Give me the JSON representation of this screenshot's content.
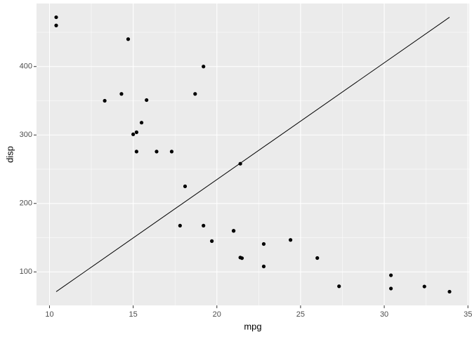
{
  "chart_data": {
    "type": "scatter",
    "x_label": "mpg",
    "y_label": "disp",
    "x": [
      21,
      21,
      22.8,
      21.4,
      18.7,
      18.1,
      14.3,
      24.4,
      22.8,
      19.2,
      17.8,
      16.4,
      17.3,
      15.2,
      10.4,
      10.4,
      14.7,
      32.4,
      30.4,
      33.9,
      21.5,
      15.5,
      15.2,
      13.3,
      19.2,
      27.3,
      26,
      30.4,
      15.8,
      19.7,
      15,
      21.4
    ],
    "values": [
      160,
      160,
      108,
      258,
      360,
      225,
      360,
      146.7,
      140.8,
      167.6,
      167.6,
      275.8,
      275.8,
      275.8,
      472,
      460,
      440,
      78.7,
      75.7,
      71.1,
      120.1,
      318,
      304,
      350,
      400,
      79,
      120.3,
      95.1,
      351,
      145,
      301,
      121
    ],
    "color": "#000000",
    "line": {
      "x": [
        10.4,
        33.9
      ],
      "values": [
        71.1,
        472
      ],
      "color": "#000000"
    },
    "xlim": [
      9.225,
      35.075
    ],
    "ylim": [
      51.055,
      492.045
    ],
    "xticks": [
      10,
      15,
      20,
      25,
      30,
      35
    ],
    "yticks": [
      100,
      200,
      300,
      400
    ],
    "grid": true
  }
}
